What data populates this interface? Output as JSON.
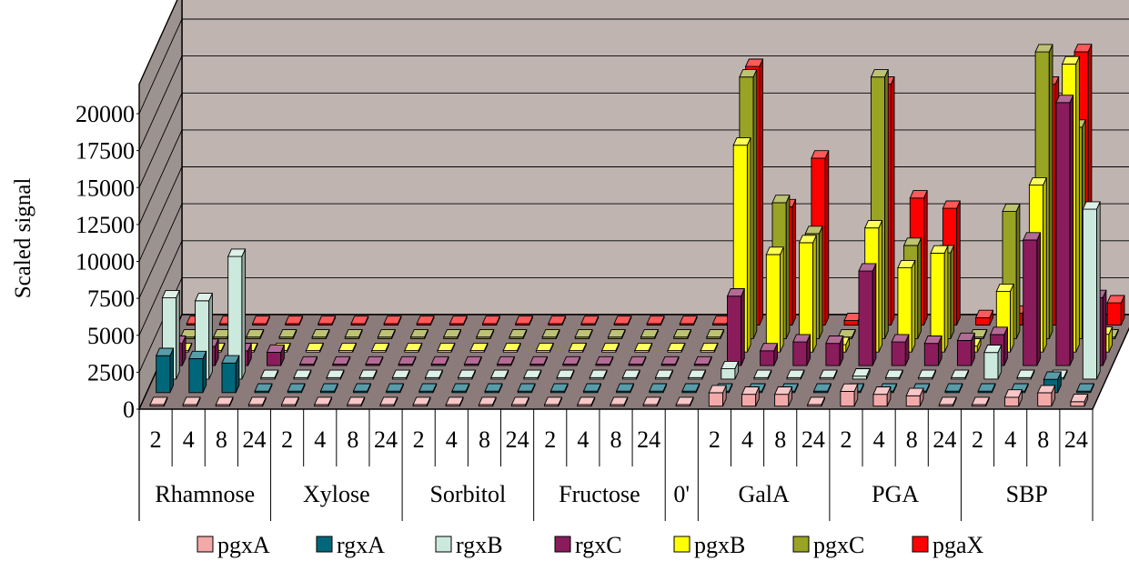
{
  "chart_data": {
    "type": "bar",
    "style": "3d-clustered-depth",
    "ylabel": "Scaled signal",
    "y_ticks": [
      "0",
      "2500",
      "5000",
      "7500",
      "10000",
      "12500",
      "15000",
      "17500",
      "20000"
    ],
    "ylim": [
      0,
      20000
    ],
    "groups": [
      {
        "name": "Rhamnose",
        "times": [
          "2",
          "4",
          "8",
          "24"
        ]
      },
      {
        "name": "Xylose",
        "times": [
          "2",
          "4",
          "8",
          "24"
        ]
      },
      {
        "name": "Sorbitol",
        "times": [
          "2",
          "4",
          "8",
          "24"
        ]
      },
      {
        "name": "Fructose",
        "times": [
          "2",
          "4",
          "8",
          "24"
        ]
      },
      {
        "name": "0'",
        "times": [
          ""
        ]
      },
      {
        "name": "GalA",
        "times": [
          "2",
          "4",
          "8",
          "24"
        ]
      },
      {
        "name": "PGA",
        "times": [
          "2",
          "4",
          "8",
          "24"
        ]
      },
      {
        "name": "SBP",
        "times": [
          "2",
          "4",
          "8",
          "24"
        ]
      }
    ],
    "series": [
      {
        "name": "pgxA",
        "color": "#f4a9a9",
        "values": [
          100,
          100,
          100,
          100,
          100,
          100,
          100,
          100,
          100,
          100,
          100,
          100,
          100,
          100,
          100,
          100,
          100,
          900,
          800,
          800,
          100,
          1000,
          800,
          700,
          100,
          100,
          600,
          900,
          300
        ]
      },
      {
        "name": "rgxA",
        "color": "#00677a",
        "values": [
          2500,
          2300,
          2000,
          100,
          100,
          100,
          100,
          100,
          100,
          100,
          100,
          100,
          100,
          100,
          100,
          100,
          100,
          100,
          100,
          100,
          100,
          100,
          100,
          100,
          100,
          100,
          100,
          900,
          100
        ]
      },
      {
        "name": "rgxB",
        "color": "#cce9dd",
        "values": [
          5500,
          5300,
          8300,
          100,
          100,
          100,
          100,
          100,
          100,
          100,
          100,
          100,
          100,
          100,
          100,
          100,
          100,
          700,
          100,
          100,
          100,
          200,
          100,
          100,
          100,
          1800,
          100,
          100,
          11500
        ]
      },
      {
        "name": "rgxC",
        "color": "#8a1c5c",
        "values": [
          1500,
          1300,
          1000,
          900,
          100,
          100,
          100,
          100,
          100,
          100,
          100,
          100,
          100,
          100,
          100,
          100,
          100,
          4700,
          1000,
          1600,
          1500,
          6400,
          1600,
          1500,
          1700,
          2100,
          8500,
          17800,
          4600
        ]
      },
      {
        "name": "pgxB",
        "color": "#ffff00",
        "values": [
          100,
          100,
          100,
          100,
          100,
          100,
          100,
          100,
          100,
          100,
          100,
          100,
          100,
          100,
          100,
          100,
          100,
          14000,
          6600,
          7400,
          500,
          8400,
          5700,
          6700,
          400,
          4100,
          11300,
          19500,
          1200
        ]
      },
      {
        "name": "pgxC",
        "color": "#99a324",
        "values": [
          100,
          100,
          100,
          100,
          100,
          100,
          100,
          100,
          100,
          100,
          100,
          100,
          100,
          100,
          100,
          100,
          100,
          17700,
          9200,
          7100,
          100,
          17700,
          6300,
          5800,
          100,
          8600,
          19400,
          14300,
          100
        ]
      },
      {
        "name": "pgaX",
        "color": "#ff0000",
        "values": [
          100,
          100,
          100,
          100,
          100,
          100,
          100,
          100,
          100,
          100,
          100,
          100,
          100,
          100,
          100,
          100,
          100,
          17500,
          8000,
          11300,
          300,
          16300,
          8600,
          7900,
          500,
          800,
          16300,
          18500,
          1500
        ]
      }
    ]
  }
}
